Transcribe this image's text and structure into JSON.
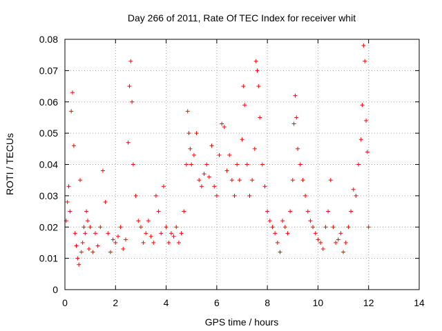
{
  "chart_data": {
    "type": "scatter",
    "title": "Day 266 of 2011, Rate Of TEC Index for receiver whit",
    "xlabel": "GPS time / hours",
    "ylabel": "ROTI / TECUs",
    "xlim": [
      0,
      14
    ],
    "ylim": [
      0,
      0.08
    ],
    "x_ticks": [
      "0",
      "2",
      "4",
      "6",
      "8",
      "10",
      "12",
      "14"
    ],
    "y_ticks": [
      "0",
      "0.01",
      "0.02",
      "0.03",
      "0.04",
      "0.05",
      "0.06",
      "0.07",
      "0.08"
    ],
    "grid": true,
    "marker": "+",
    "series_color": "#ff0000",
    "series": [
      {
        "values_x": [
          0.05,
          0.1,
          0.15,
          0.2,
          0.25,
          0.3,
          0.35,
          0.4,
          0.45,
          0.5,
          0.55,
          0.6,
          0.65,
          0.7,
          0.75,
          0.8,
          0.85,
          0.9,
          0.95,
          1.0,
          1.1,
          1.2,
          1.3,
          1.4,
          1.5,
          1.6,
          1.7,
          1.8,
          1.9,
          2.0,
          2.1,
          2.2,
          2.3,
          2.4,
          2.5,
          2.55,
          2.6,
          2.65,
          2.7,
          2.8,
          2.9,
          3.0,
          3.1,
          3.2,
          3.3,
          3.4,
          3.5,
          3.6,
          3.7,
          3.8,
          3.9,
          4.0,
          4.1,
          4.2,
          4.3,
          4.4,
          4.5,
          4.6,
          4.7,
          4.8,
          4.85,
          4.9,
          4.95,
          5.0,
          5.1,
          5.2,
          5.3,
          5.4,
          5.5,
          5.6,
          5.7,
          5.8,
          5.9,
          6.0,
          6.1,
          6.2,
          6.3,
          6.4,
          6.5,
          6.6,
          6.7,
          6.8,
          6.9,
          7.0,
          7.05,
          7.1,
          7.2,
          7.3,
          7.4,
          7.5,
          7.55,
          7.6,
          7.65,
          7.7,
          7.8,
          7.9,
          8.0,
          8.1,
          8.2,
          8.3,
          8.4,
          8.5,
          8.6,
          8.7,
          8.8,
          8.9,
          9.0,
          9.05,
          9.1,
          9.15,
          9.2,
          9.3,
          9.4,
          9.5,
          9.6,
          9.7,
          9.8,
          9.9,
          10.0,
          10.1,
          10.2,
          10.3,
          10.4,
          10.5,
          10.6,
          10.7,
          10.8,
          10.9,
          11.0,
          11.1,
          11.2,
          11.3,
          11.4,
          11.5,
          11.6,
          11.7,
          11.75,
          11.8,
          11.85,
          11.9,
          11.95,
          12.0
        ],
        "values_y": [
          0.022,
          0.028,
          0.033,
          0.025,
          0.057,
          0.063,
          0.046,
          0.018,
          0.014,
          0.01,
          0.008,
          0.035,
          0.012,
          0.015,
          0.02,
          0.018,
          0.025,
          0.022,
          0.013,
          0.02,
          0.012,
          0.018,
          0.014,
          0.02,
          0.038,
          0.028,
          0.018,
          0.012,
          0.016,
          0.015,
          0.017,
          0.02,
          0.013,
          0.016,
          0.047,
          0.065,
          0.073,
          0.06,
          0.04,
          0.03,
          0.022,
          0.02,
          0.015,
          0.018,
          0.022,
          0.017,
          0.015,
          0.03,
          0.025,
          0.018,
          0.033,
          0.02,
          0.015,
          0.018,
          0.017,
          0.02,
          0.015,
          0.018,
          0.025,
          0.04,
          0.057,
          0.05,
          0.045,
          0.04,
          0.043,
          0.05,
          0.035,
          0.033,
          0.037,
          0.04,
          0.036,
          0.046,
          0.033,
          0.03,
          0.043,
          0.053,
          0.052,
          0.038,
          0.043,
          0.035,
          0.03,
          0.04,
          0.035,
          0.048,
          0.065,
          0.059,
          0.04,
          0.03,
          0.035,
          0.045,
          0.073,
          0.07,
          0.065,
          0.055,
          0.04,
          0.033,
          0.025,
          0.022,
          0.02,
          0.018,
          0.015,
          0.012,
          0.022,
          0.02,
          0.018,
          0.025,
          0.035,
          0.053,
          0.062,
          0.055,
          0.045,
          0.04,
          0.035,
          0.03,
          0.025,
          0.022,
          0.02,
          0.018,
          0.016,
          0.015,
          0.013,
          0.02,
          0.025,
          0.035,
          0.02,
          0.015,
          0.016,
          0.018,
          0.012,
          0.015,
          0.02,
          0.025,
          0.032,
          0.03,
          0.04,
          0.048,
          0.059,
          0.078,
          0.073,
          0.054,
          0.044,
          0.02
        ]
      }
    ]
  }
}
